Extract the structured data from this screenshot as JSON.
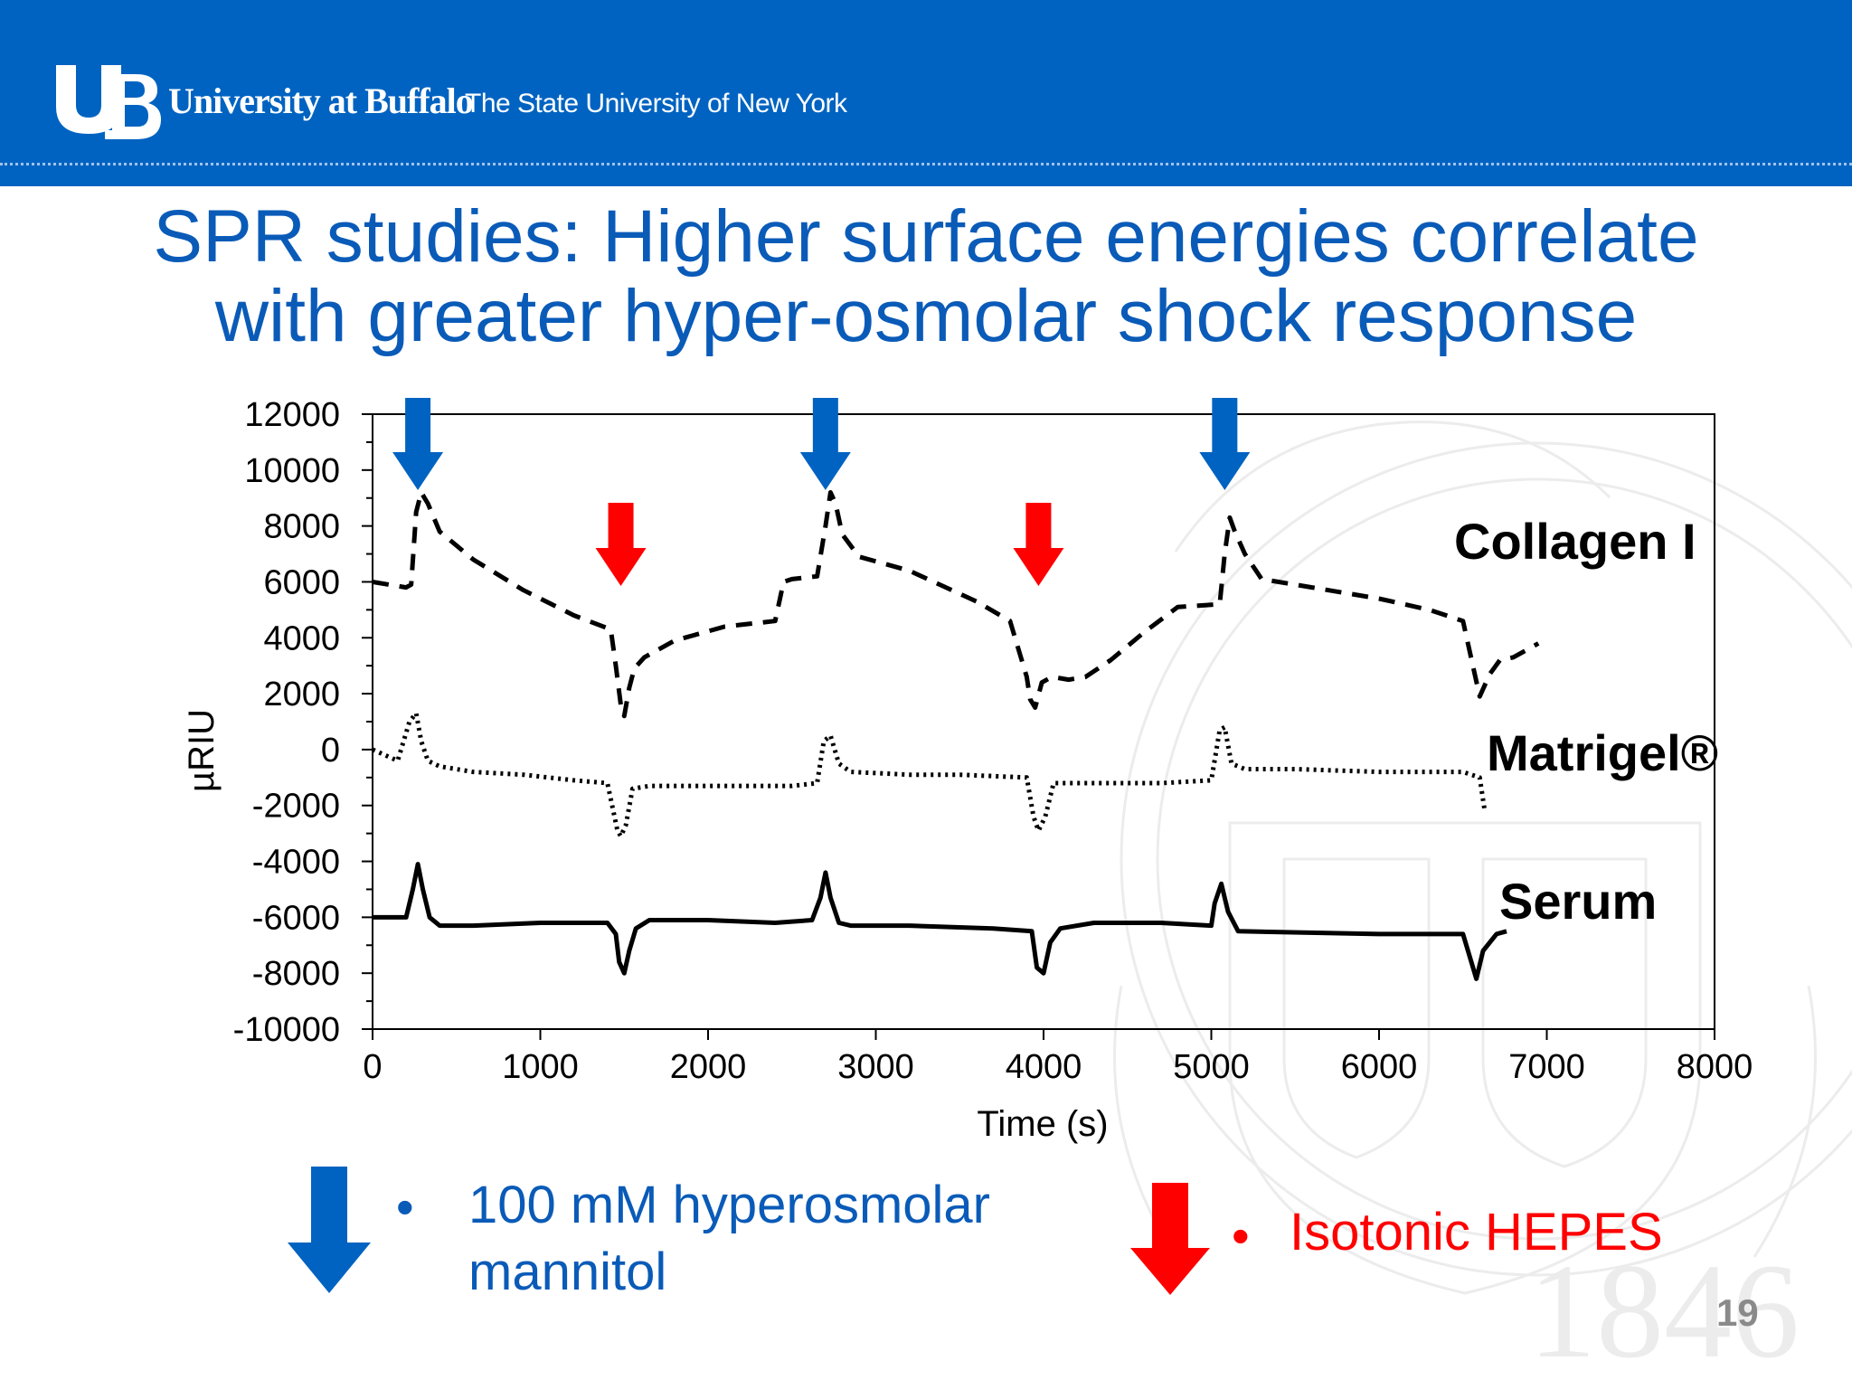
{
  "header": {
    "university_name": "University at Buffalo",
    "subtitle": "The State University of New York",
    "background_color": "#0063c1"
  },
  "title": {
    "line1": "SPR studies: Higher surface energies correlate",
    "line2": "with greater hyper-osmolar shock response",
    "color": "#0a5bb8"
  },
  "chart_data": {
    "type": "line",
    "xlabel": "Time (s)",
    "ylabel": "µRIU",
    "xlim": [
      0,
      8000
    ],
    "ylim": [
      -10000,
      12000
    ],
    "xticks": [
      "0",
      "1000",
      "2000",
      "3000",
      "4000",
      "5000",
      "6000",
      "7000",
      "8000"
    ],
    "yticks": [
      "12000",
      "10000",
      "8000",
      "6000",
      "4000",
      "2000",
      "0",
      "-2000",
      "-4000",
      "-6000",
      "-8000",
      "-10000"
    ],
    "grid": false,
    "series": [
      {
        "name": "Collagen I",
        "style": "dashed",
        "x": [
          0,
          200,
          230,
          260,
          290,
          330,
          400,
          600,
          900,
          1200,
          1420,
          1450,
          1480,
          1500,
          1530,
          1560,
          1620,
          1800,
          2100,
          2400,
          2450,
          2500,
          2650,
          2700,
          2730,
          2760,
          2800,
          2900,
          3200,
          3600,
          3800,
          3900,
          3920,
          3950,
          3990,
          4050,
          4150,
          4250,
          4400,
          4600,
          4800,
          5050,
          5080,
          5110,
          5140,
          5200,
          5300,
          5600,
          6000,
          6300,
          6500,
          6600,
          6660,
          6720,
          6800,
          6950
        ],
        "values": [
          6000,
          5800,
          5900,
          8500,
          9200,
          8800,
          7800,
          6800,
          5700,
          4800,
          4300,
          3000,
          1600,
          1200,
          2200,
          2900,
          3300,
          3900,
          4400,
          4600,
          6000,
          6100,
          6200,
          8000,
          9200,
          8800,
          7700,
          6900,
          6400,
          5300,
          4600,
          2600,
          1800,
          1500,
          2400,
          2600,
          2500,
          2600,
          3200,
          4200,
          5100,
          5200,
          7000,
          8300,
          7800,
          7000,
          6100,
          5800,
          5400,
          5000,
          4600,
          1900,
          2700,
          3200,
          3300,
          3800
        ]
      },
      {
        "name": "Matrigel®",
        "style": "dotted",
        "x": [
          0,
          150,
          220,
          260,
          290,
          330,
          400,
          600,
          900,
          1200,
          1400,
          1460,
          1480,
          1510,
          1550,
          1650,
          2000,
          2500,
          2650,
          2690,
          2730,
          2780,
          2850,
          3200,
          3500,
          3900,
          3940,
          3970,
          4010,
          4060,
          4200,
          4700,
          5000,
          5050,
          5080,
          5120,
          5200,
          5500,
          6000,
          6500,
          6600,
          6630
        ],
        "values": [
          0,
          -400,
          1000,
          1300,
          300,
          -400,
          -600,
          -800,
          -900,
          -1100,
          -1200,
          -2900,
          -3100,
          -2700,
          -1400,
          -1300,
          -1300,
          -1300,
          -1200,
          300,
          500,
          -500,
          -800,
          -900,
          -900,
          -1000,
          -2400,
          -2900,
          -2400,
          -1200,
          -1200,
          -1200,
          -1100,
          700,
          800,
          -500,
          -700,
          -700,
          -800,
          -800,
          -1000,
          -2200
        ]
      },
      {
        "name": "Serum",
        "style": "solid",
        "x": [
          0,
          200,
          240,
          270,
          300,
          340,
          400,
          600,
          1000,
          1400,
          1450,
          1470,
          1500,
          1530,
          1570,
          1650,
          2000,
          2400,
          2620,
          2670,
          2700,
          2730,
          2780,
          2850,
          3200,
          3700,
          3930,
          3960,
          4000,
          4040,
          4100,
          4300,
          4700,
          5000,
          5020,
          5060,
          5100,
          5160,
          6000,
          6500,
          6540,
          6580,
          6620,
          6700,
          6760
        ],
        "values": [
          -6000,
          -6000,
          -5000,
          -4100,
          -5000,
          -6000,
          -6300,
          -6300,
          -6200,
          -6200,
          -6600,
          -7600,
          -8000,
          -7200,
          -6400,
          -6100,
          -6100,
          -6200,
          -6100,
          -5300,
          -4400,
          -5300,
          -6200,
          -6300,
          -6300,
          -6400,
          -6500,
          -7800,
          -8000,
          -6900,
          -6400,
          -6200,
          -6200,
          -6300,
          -5500,
          -4800,
          -5800,
          -6500,
          -6600,
          -6600,
          -7400,
          -8200,
          -7200,
          -6600,
          -6500
        ]
      }
    ],
    "annotations": [
      {
        "type": "arrow-down",
        "color": "#0063c1",
        "x": 270
      },
      {
        "type": "arrow-down",
        "color": "#0063c1",
        "x": 2700
      },
      {
        "type": "arrow-down",
        "color": "#0063c1",
        "x": 5080
      },
      {
        "type": "arrow-down",
        "color": "#ff0000",
        "x": 1480
      },
      {
        "type": "arrow-down",
        "color": "#ff0000",
        "x": 3970
      }
    ],
    "series_labels": [
      "Collagen I",
      "Matrigel®",
      "Serum"
    ]
  },
  "legend": {
    "items": [
      {
        "bullet": "•",
        "text_line1": "100 mM hyperosmolar",
        "text_line2": "mannitol",
        "color": "#0a5bb8",
        "arrow_color": "#0063c1"
      },
      {
        "bullet": "•",
        "text_line1": "Isotonic HEPES",
        "color": "#ff0000",
        "arrow_color": "#ff0000"
      }
    ]
  },
  "page_number": "19",
  "watermark_year": "1846"
}
